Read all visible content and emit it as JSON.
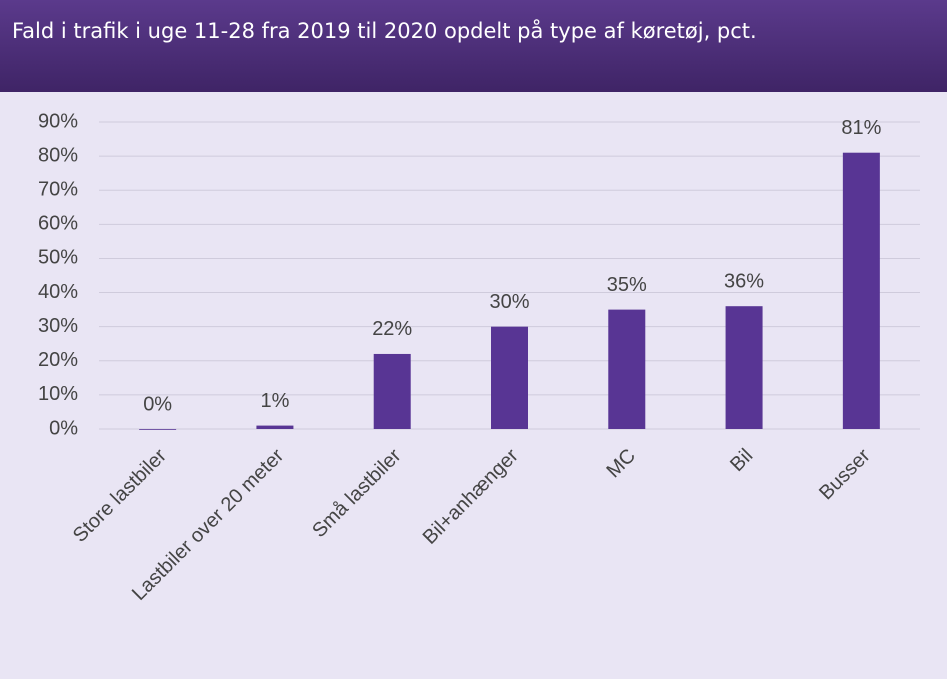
{
  "chart_data": {
    "type": "bar",
    "title": "Fald i trafik i uge 11-28 fra 2019 til 2020 opdelt på type af køretøj, pct.",
    "categories": [
      "Store lastbiler",
      "Lastbiler over 20 meter",
      "Små lastbiler",
      "Bil+anhænger",
      "MC",
      "Bil",
      "Busser"
    ],
    "values": [
      0,
      1,
      22,
      30,
      35,
      36,
      81
    ],
    "value_labels": [
      "0%",
      "1%",
      "22%",
      "30%",
      "35%",
      "36%",
      "81%"
    ],
    "color": "#583594",
    "ylim": [
      0,
      90
    ],
    "yticks": [
      {
        "value": 0,
        "label": "0%"
      },
      {
        "value": 10,
        "label": "10%"
      },
      {
        "value": 20,
        "label": "20%"
      },
      {
        "value": 30,
        "label": "30%"
      },
      {
        "value": 40,
        "label": "40%"
      },
      {
        "value": 50,
        "label": "50%"
      },
      {
        "value": 60,
        "label": "60%"
      },
      {
        "value": 70,
        "label": "70%"
      },
      {
        "value": 80,
        "label": "80%"
      },
      {
        "value": 90,
        "label": "90%"
      }
    ],
    "grid": true
  }
}
